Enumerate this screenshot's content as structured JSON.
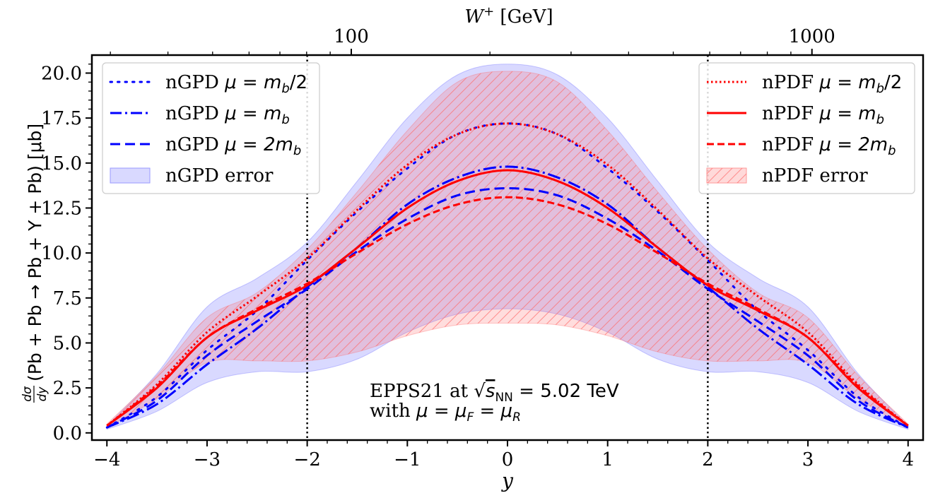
{
  "chart_data": {
    "type": "line",
    "xlabel": "y",
    "ylabel": "dσ/dy(Pb + Pb → Pb + Υ + Pb) [μb]",
    "top_xlabel": "W⁺ [GeV]",
    "xlim": [
      -4.15,
      4.15
    ],
    "ylim": [
      -0.4,
      21.0
    ],
    "x_ticks": [
      -4,
      -3,
      -2,
      -1,
      0,
      1,
      2,
      3,
      4
    ],
    "x_tick_labels": [
      "−4",
      "−3",
      "−2",
      "−1",
      "0",
      "1",
      "2",
      "3",
      "4"
    ],
    "y_ticks": [
      0.0,
      2.5,
      5.0,
      7.5,
      10.0,
      12.5,
      15.0,
      17.5,
      20.0
    ],
    "y_tick_labels": [
      "0.0",
      "2.5",
      "5.0",
      "7.5",
      "10.0",
      "12.5",
      "15.0",
      "17.5",
      "20.0"
    ],
    "top_axis": {
      "scale": "log",
      "major_labels": [
        {
          "label": "100",
          "y": -1.56
        },
        {
          "label": "1000",
          "y": 3.04
        }
      ]
    },
    "vlines": [
      -2,
      2
    ],
    "x": [
      -4,
      -3.5,
      -3,
      -2.5,
      -2,
      -1.5,
      -1,
      -0.5,
      0,
      0.5,
      1,
      1.5,
      2,
      2.5,
      3,
      3.5,
      4
    ],
    "series": [
      {
        "name": "nGPD μ = m_b/2",
        "color": "#0000ff",
        "style": "dotted",
        "values": [
          0.3,
          2.0,
          4.6,
          6.8,
          9.6,
          12.3,
          14.7,
          16.6,
          17.2,
          16.6,
          14.7,
          12.3,
          9.6,
          6.8,
          4.6,
          2.0,
          0.3
        ]
      },
      {
        "name": "nGPD μ = m_b",
        "color": "#0000ff",
        "style": "dashdot",
        "values": [
          0.3,
          1.6,
          3.8,
          5.8,
          8.1,
          10.3,
          12.7,
          14.2,
          14.8,
          14.2,
          12.7,
          10.3,
          8.1,
          5.8,
          3.8,
          1.6,
          0.3
        ]
      },
      {
        "name": "nGPD μ = 2m_b",
        "color": "#0000ff",
        "style": "dashed",
        "values": [
          0.3,
          1.8,
          4.3,
          6.2,
          8.0,
          10.1,
          11.9,
          13.2,
          13.6,
          13.2,
          11.9,
          10.1,
          8.0,
          6.2,
          4.3,
          1.8,
          0.3
        ]
      },
      {
        "name": "nPDF μ = m_b/2",
        "color": "#ff0000",
        "style": "dotted",
        "values": [
          0.4,
          2.7,
          5.6,
          7.6,
          9.7,
          12.4,
          14.9,
          16.6,
          17.2,
          16.6,
          14.9,
          12.4,
          9.7,
          7.6,
          5.6,
          2.7,
          0.4
        ]
      },
      {
        "name": "nPDF μ = m_b",
        "color": "#ff0000",
        "style": "solid",
        "values": [
          0.4,
          2.5,
          5.3,
          6.8,
          8.2,
          10.3,
          12.5,
          14.0,
          14.6,
          14.0,
          12.5,
          10.3,
          8.2,
          6.8,
          5.3,
          2.5,
          0.4
        ]
      },
      {
        "name": "nPDF μ = 2m_b",
        "color": "#ff0000",
        "style": "dashed",
        "values": [
          0.4,
          2.6,
          5.3,
          6.9,
          8.3,
          10.0,
          11.6,
          12.7,
          13.1,
          12.7,
          11.6,
          10.0,
          8.3,
          6.9,
          5.3,
          2.6,
          0.4
        ]
      }
    ],
    "bands": [
      {
        "name": "nGPD error",
        "color": "#6666ff",
        "hatch": false,
        "lower": [
          0.2,
          1.2,
          2.8,
          3.4,
          3.4,
          4.1,
          5.6,
          6.6,
          6.9,
          6.6,
          5.6,
          4.1,
          3.4,
          3.4,
          2.8,
          1.2,
          0.2
        ],
        "upper": [
          0.4,
          3.3,
          7.0,
          8.6,
          10.6,
          14.0,
          17.5,
          19.9,
          20.5,
          19.9,
          17.5,
          14.0,
          10.6,
          8.6,
          7.0,
          3.3,
          0.4
        ]
      },
      {
        "name": "nPDF error",
        "color": "#ff6666",
        "hatch": true,
        "lower": [
          0.3,
          1.9,
          3.9,
          4.0,
          4.0,
          4.5,
          5.4,
          6.0,
          6.1,
          6.0,
          5.4,
          4.5,
          4.0,
          4.0,
          3.9,
          1.9,
          0.3
        ],
        "upper": [
          0.5,
          3.2,
          6.4,
          7.8,
          10.2,
          13.4,
          16.8,
          19.5,
          20.1,
          19.5,
          16.8,
          13.4,
          10.2,
          7.8,
          6.4,
          3.2,
          0.5
        ]
      }
    ],
    "legend_left": [
      "nGPD μ = m_b/2",
      "nGPD μ = m_b",
      "nGPD μ = 2m_b",
      "nGPD error"
    ],
    "legend_right": [
      "nPDF μ = m_b/2",
      "nPDF μ = m_b",
      "nPDF μ = 2m_b",
      "nPDF error"
    ],
    "annotation": {
      "line1": "EPPS21 at √s_NN = 5.02 TeV",
      "line2": "with μ = μ_F = μ_R"
    }
  },
  "labels": {
    "legend_left": [
      {
        "prefix": "nGPD ",
        "math": "μ = m",
        "sub": "b",
        "suffix": "/2"
      },
      {
        "prefix": "nGPD ",
        "math": "μ = m",
        "sub": "b",
        "suffix": ""
      },
      {
        "prefix": "nGPD ",
        "math": "μ = 2m",
        "sub": "b",
        "suffix": ""
      },
      {
        "prefix": "nGPD error",
        "math": "",
        "sub": "",
        "suffix": ""
      }
    ],
    "legend_right": [
      {
        "prefix": "nPDF ",
        "math": "μ = m",
        "sub": "b",
        "suffix": "/2"
      },
      {
        "prefix": "nPDF ",
        "math": "μ = m",
        "sub": "b",
        "suffix": ""
      },
      {
        "prefix": "nPDF ",
        "math": "μ = 2m",
        "sub": "b",
        "suffix": ""
      },
      {
        "prefix": "nPDF error",
        "math": "",
        "sub": "",
        "suffix": ""
      }
    ],
    "annot_line1_prefix": "EPPS21 at ",
    "annot_line1_math": "s",
    "annot_line1_sub": "NN",
    "annot_line1_suffix": " = 5.02 TeV",
    "annot_line2_prefix": "with ",
    "annot_line2_math": "μ = μ",
    "annot_line2_sub1": "F",
    "annot_line2_mid": " = μ",
    "annot_line2_sub2": "R",
    "ylabel_frac_num": "dσ",
    "ylabel_frac_den": "dy",
    "ylabel_rest": "(Pb + Pb → Pb + Υ + Pb) [μb]",
    "top_xlabel_math": "W",
    "top_xlabel_sup": "+",
    "top_xlabel_unit": " [GeV]",
    "xlabel": "y"
  }
}
